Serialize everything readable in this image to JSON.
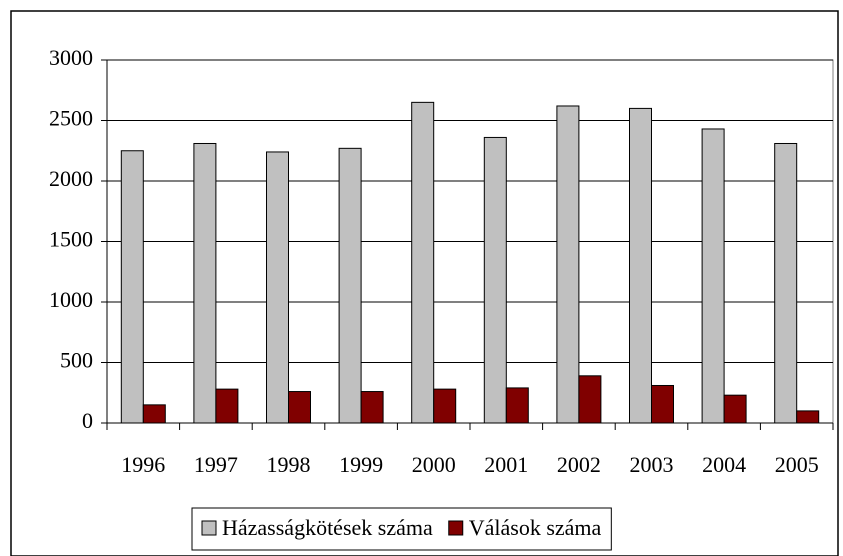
{
  "chart_data": {
    "type": "bar",
    "categories": [
      "1996",
      "1997",
      "1998",
      "1999",
      "2000",
      "2001",
      "2002",
      "2003",
      "2004",
      "2005"
    ],
    "series": [
      {
        "name": "Házasságkötések száma",
        "color": "#c0c0c0",
        "values": [
          2250,
          2310,
          2240,
          2270,
          2650,
          2360,
          2620,
          2600,
          2430,
          2310
        ]
      },
      {
        "name": "Válások száma",
        "color": "#800000",
        "values": [
          150,
          280,
          260,
          260,
          280,
          290,
          390,
          310,
          230,
          100
        ]
      }
    ],
    "ylim": [
      0,
      3000
    ],
    "yticks": [
      0,
      500,
      1000,
      1500,
      2000,
      2500,
      3000
    ],
    "grid": true,
    "legend": "bottom"
  }
}
